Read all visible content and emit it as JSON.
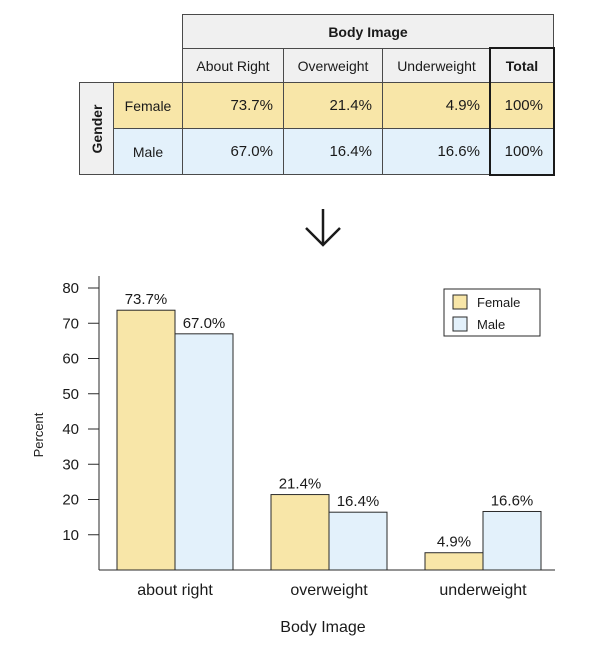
{
  "table": {
    "title": "Body Image",
    "row_group_label": "Gender",
    "columns": [
      "About Right",
      "Overweight",
      "Underweight",
      "Total"
    ],
    "rows": [
      {
        "label": "Female",
        "cells": [
          "73.7%",
          "21.4%",
          "4.9%",
          "100%"
        ]
      },
      {
        "label": "Male",
        "cells": [
          "67.0%",
          "16.4%",
          "16.6%",
          "100%"
        ]
      }
    ]
  },
  "arrow": {
    "icon": "down-arrow-icon",
    "glyph": "↓"
  },
  "colors": {
    "female": "#f8e6a8",
    "male": "#e3f1fb",
    "stroke": "#2a2a2a",
    "header": "#f0f0f0"
  },
  "chart_data": {
    "type": "bar",
    "categories": [
      "about right",
      "overweight",
      "underweight"
    ],
    "series": [
      {
        "name": "Female",
        "values": [
          73.7,
          21.4,
          4.9
        ],
        "labels": [
          "73.7%",
          "21.4%",
          "4.9%"
        ],
        "color": "#f8e6a8"
      },
      {
        "name": "Male",
        "values": [
          67.0,
          16.4,
          16.6
        ],
        "labels": [
          "67.0%",
          "16.4%",
          "16.6%"
        ],
        "color": "#e3f1fb"
      }
    ],
    "xlabel": "Body Image",
    "ylabel": "Percent",
    "ylim": [
      0,
      80
    ],
    "yticks": [
      10,
      20,
      30,
      40,
      50,
      60,
      70,
      80
    ],
    "legend": "top-right",
    "grid": false
  }
}
